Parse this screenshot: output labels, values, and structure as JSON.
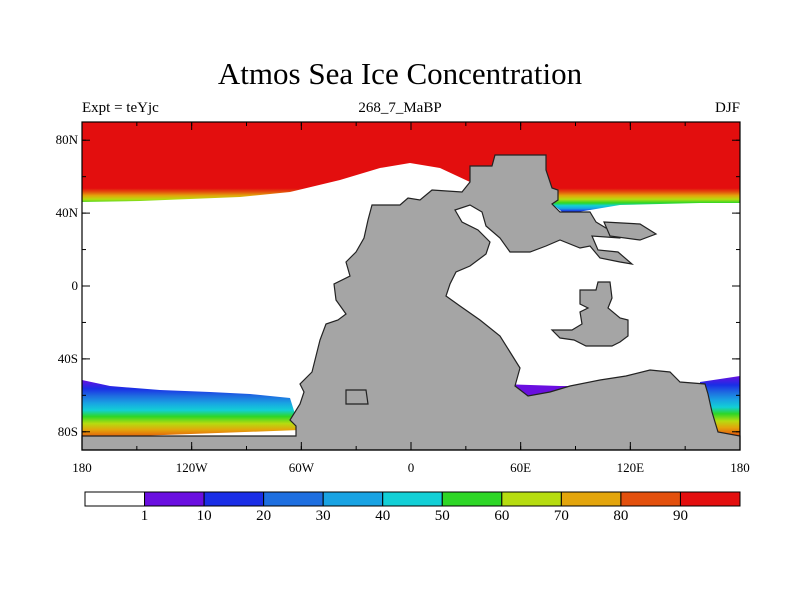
{
  "title": "Atmos Sea Ice Concentration",
  "left_label": "Expt = teYjc",
  "center_label": "268_7_MaBP",
  "right_label": "DJF",
  "axes": {
    "y_ticks": [
      {
        "label": "80N",
        "lat": 80
      },
      {
        "label": "40N",
        "lat": 40
      },
      {
        "label": "0",
        "lat": 0
      },
      {
        "label": "40S",
        "lat": -40
      },
      {
        "label": "80S",
        "lat": -80
      }
    ],
    "x_ticks": [
      {
        "label": "180",
        "lon": -180
      },
      {
        "label": "120W",
        "lon": -120
      },
      {
        "label": "60W",
        "lon": -60
      },
      {
        "label": "0",
        "lon": 0
      },
      {
        "label": "60E",
        "lon": 60
      },
      {
        "label": "120E",
        "lon": 120
      },
      {
        "label": "180",
        "lon": 180
      }
    ],
    "lon_range": [
      -180,
      180
    ],
    "lat_range": [
      -90,
      90
    ]
  },
  "colorbar": {
    "labels": [
      "1",
      "10",
      "20",
      "30",
      "40",
      "50",
      "60",
      "70",
      "80",
      "90"
    ],
    "colors": [
      "#ffffff",
      "#6a0fe0",
      "#1a2ee6",
      "#1e6fe0",
      "#19a3e3",
      "#12cfd6",
      "#2ed626",
      "#b6dc10",
      "#e3a50c",
      "#e3500d",
      "#e30e0e"
    ]
  },
  "colors": {
    "land": "#a5a5a5",
    "ocean": "#ffffff",
    "ice_high": "#e30e0e"
  }
}
